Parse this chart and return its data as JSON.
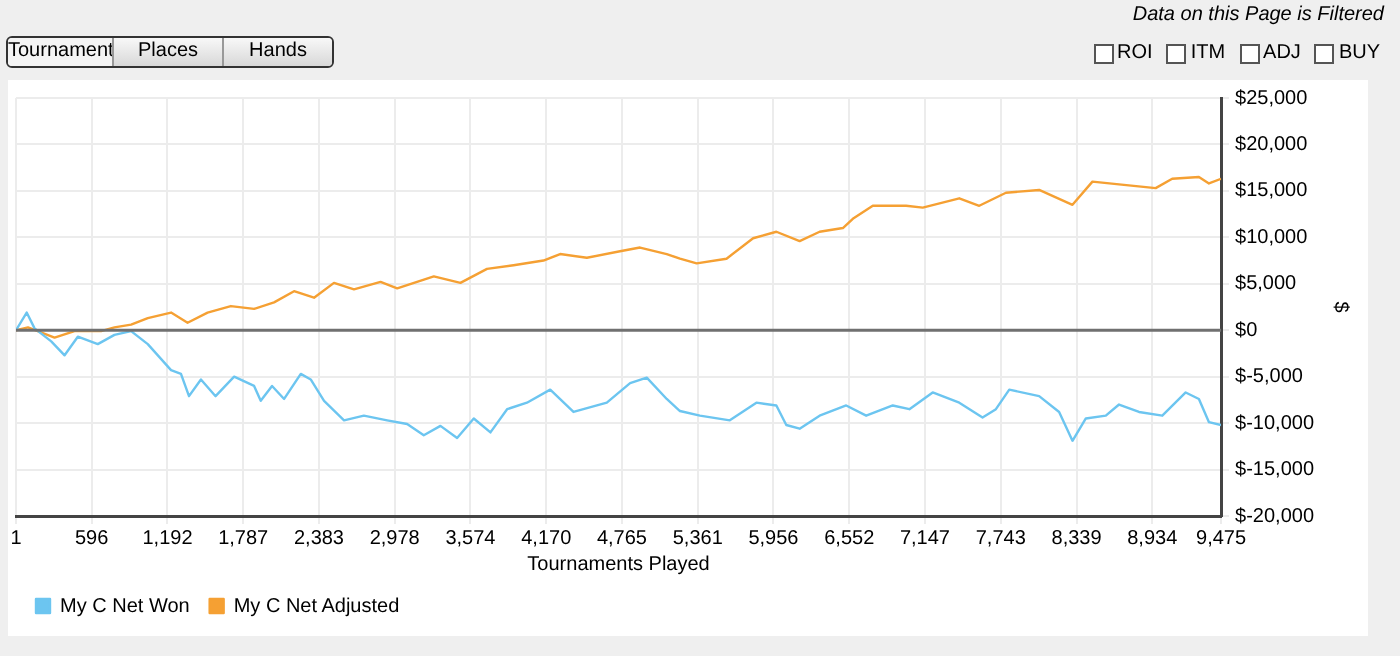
{
  "chart_data": {
    "type": "line",
    "xlabel": "Tournaments Played",
    "ylabel": "$",
    "annotations": [
      "Data on this Page is Filtered",
      "Tournament",
      "Places",
      "Hands",
      "ROI",
      "ITM",
      "ADJ",
      "BUY"
    ],
    "xlim": [
      1,
      9475
    ],
    "xticks": [
      1,
      596,
      {
        "value": 1192,
        "label": "1,192"
      },
      {
        "value": 1787,
        "label": "1,787"
      },
      {
        "value": 2383,
        "label": "2,383"
      },
      {
        "value": 2978,
        "label": "2,978"
      },
      {
        "value": 3574,
        "label": "3,574"
      },
      {
        "value": 4170,
        "label": "4,170"
      },
      {
        "value": 4765,
        "label": "4,765"
      },
      {
        "value": 5361,
        "label": "5,361"
      },
      {
        "value": 5956,
        "label": "5,956"
      },
      {
        "value": 6552,
        "label": "6,552"
      },
      {
        "value": 7147,
        "label": "7,147"
      },
      {
        "value": 7743,
        "label": "7,743"
      },
      {
        "value": 8339,
        "label": "8,339"
      },
      {
        "value": 8934,
        "label": "8,934"
      },
      {
        "value": 9475,
        "label": "9,475"
      }
    ],
    "ylim": [
      -20000,
      25000
    ],
    "yticks": [
      {
        "value": -20000,
        "label": "$-20,000"
      },
      {
        "value": -15000,
        "label": "$-15,000"
      },
      {
        "value": -10000,
        "label": "$-10,000"
      },
      {
        "value": -5000,
        "label": "$-5,000"
      },
      {
        "value": 0,
        "label": "$0"
      },
      {
        "value": 5000,
        "label": "$5,000"
      },
      {
        "value": 10000,
        "label": "$10,000"
      },
      {
        "value": 15000,
        "label": "$15,000"
      },
      {
        "value": 20000,
        "label": "$20,000"
      },
      {
        "value": 25000,
        "label": "$25,000"
      }
    ],
    "grid": true,
    "legend": "bottom left",
    "marker": "none",
    "line_style": "solid",
    "ref_lines": [
      {
        "axis": "y",
        "value": 0,
        "color": "#707070"
      }
    ],
    "series": [
      {
        "name": "My C Net Won",
        "color": "#6cc5f0",
        "x": [
          1,
          85,
          147,
          278,
          383,
          487,
          644,
          775,
          906,
          1037,
          1220,
          1298,
          1361,
          1455,
          1570,
          1716,
          1873,
          1925,
          2014,
          2109,
          2240,
          2318,
          2423,
          2580,
          2736,
          2919,
          3076,
          3207,
          3338,
          3469,
          3600,
          3731,
          3862,
          4018,
          4201,
          4384,
          4646,
          4829,
          4960,
          5117,
          5221,
          5378,
          5613,
          5822,
          5979,
          6057,
          6162,
          6319,
          6528,
          6685,
          6894,
          7025,
          7208,
          7417,
          7600,
          7705,
          7810,
          8045,
          8202,
          8307,
          8412,
          8569,
          8673,
          8830,
          9013,
          9197,
          9301,
          9380,
          9475
        ],
        "values": [
          0,
          1900,
          200,
          -1200,
          -2700,
          -700,
          -1500,
          -500,
          -100,
          -1500,
          -4300,
          -4700,
          -7100,
          -5300,
          -7100,
          -5000,
          -6000,
          -7600,
          -6000,
          -7400,
          -4700,
          -5300,
          -7600,
          -9700,
          -9200,
          -9700,
          -10100,
          -11300,
          -10300,
          -11600,
          -9500,
          -11000,
          -8500,
          -7800,
          -6400,
          -8800,
          -7800,
          -5700,
          -5100,
          -7400,
          -8700,
          -9200,
          -9700,
          -7800,
          -8100,
          -10200,
          -10600,
          -9200,
          -8100,
          -9200,
          -8100,
          -8500,
          -6700,
          -7800,
          -9400,
          -8500,
          -6400,
          -7100,
          -8800,
          -11900,
          -9500,
          -9200,
          -8000,
          -8800,
          -9200,
          -6700,
          -7400,
          -9900,
          -10200
        ]
      },
      {
        "name": "My C Net Adjusted",
        "color": "#f5a033",
        "x": [
          1,
          95,
          304,
          461,
          670,
          775,
          906,
          1037,
          1220,
          1350,
          1507,
          1690,
          1873,
          2030,
          2187,
          2344,
          2501,
          2658,
          2867,
          2998,
          3286,
          3495,
          3704,
          3913,
          4148,
          4279,
          4489,
          4750,
          4907,
          5117,
          5221,
          5352,
          5587,
          5796,
          5979,
          6162,
          6319,
          6502,
          6580,
          6737,
          6999,
          7130,
          7417,
          7574,
          7784,
          8045,
          8307,
          8464,
          8673,
          8961,
          9091,
          9301,
          9380,
          9475
        ],
        "values": [
          0,
          300,
          -800,
          -100,
          -100,
          300,
          600,
          1300,
          1900,
          800,
          1900,
          2600,
          2300,
          3000,
          4200,
          3500,
          5100,
          4400,
          5200,
          4500,
          5800,
          5100,
          6600,
          7000,
          7500,
          8200,
          7800,
          8500,
          8900,
          8200,
          7700,
          7200,
          7700,
          9900,
          10600,
          9600,
          10600,
          11000,
          12000,
          13400,
          13400,
          13200,
          14200,
          13400,
          14800,
          15100,
          13500,
          16000,
          15700,
          15300,
          16300,
          16500,
          15800,
          16300
        ]
      }
    ]
  }
}
